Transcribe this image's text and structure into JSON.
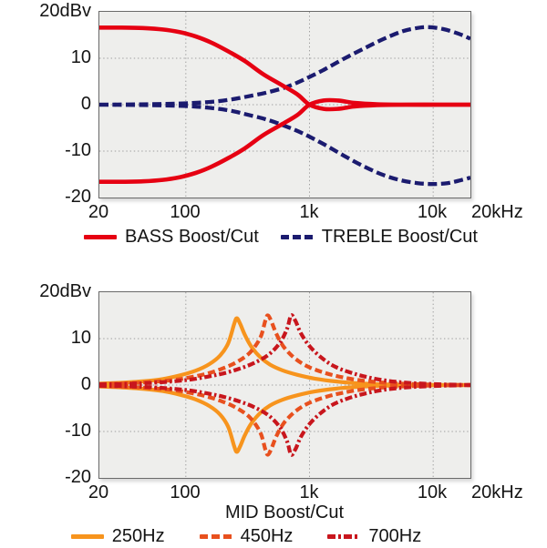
{
  "chart_data": [
    {
      "type": "line",
      "name": "bass-treble-eq-response",
      "x_scale": "log",
      "xlim": [
        20,
        20000
      ],
      "ylim": [
        -20,
        20
      ],
      "x_unit": "Hz",
      "y_unit": "dBv",
      "grid": {
        "x_values": [
          100,
          1000,
          10000
        ],
        "y_values": [
          10,
          0,
          -10
        ]
      },
      "yticks": [
        {
          "value": 20,
          "label": "20dBv"
        },
        {
          "value": 10,
          "label": "10"
        },
        {
          "value": 0,
          "label": "0"
        },
        {
          "value": -10,
          "label": "-10"
        },
        {
          "value": -20,
          "label": "-20"
        }
      ],
      "xticks": [
        {
          "value": 20,
          "label": "20"
        },
        {
          "value": 100,
          "label": "100"
        },
        {
          "value": 1000,
          "label": "1k"
        },
        {
          "value": 10000,
          "label": "10k"
        },
        {
          "value": 20000,
          "label": "20kHz"
        }
      ],
      "legend": [
        {
          "label": "BASS Boost/Cut",
          "color": "#e60012",
          "style": "solid"
        },
        {
          "label": "TREBLE Boost/Cut",
          "color": "#1b1b6f",
          "style": "dashed"
        }
      ],
      "series": [
        {
          "name": "treble-boost",
          "color": "#1b1b6f",
          "dash": "10 4.5",
          "width": 4.3,
          "points": [
            [
              20,
              0
            ],
            [
              50,
              0.1
            ],
            [
              100,
              0.3
            ],
            [
              160,
              0.6
            ],
            [
              230,
              1.1
            ],
            [
              320,
              1.8
            ],
            [
              450,
              2.6
            ],
            [
              650,
              3.8
            ],
            [
              900,
              5.4
            ],
            [
              1300,
              7.5
            ],
            [
              1900,
              9.9
            ],
            [
              2800,
              12.2
            ],
            [
              4000,
              14.2
            ],
            [
              5500,
              15.7
            ],
            [
              7000,
              16.4
            ],
            [
              9000,
              16.7
            ],
            [
              12000,
              16.3
            ],
            [
              16000,
              15.3
            ],
            [
              20000,
              14.2
            ]
          ]
        },
        {
          "name": "treble-cut",
          "color": "#1b1b6f",
          "dash": "10 4.5",
          "width": 4.3,
          "points": [
            [
              20,
              0
            ],
            [
              50,
              -0.1
            ],
            [
              100,
              -0.3
            ],
            [
              160,
              -0.7
            ],
            [
              230,
              -1.3
            ],
            [
              320,
              -2.2
            ],
            [
              450,
              -3.2
            ],
            [
              650,
              -4.7
            ],
            [
              900,
              -6.3
            ],
            [
              1300,
              -8.5
            ],
            [
              1900,
              -11.0
            ],
            [
              2800,
              -13.4
            ],
            [
              4000,
              -15.2
            ],
            [
              5500,
              -16.3
            ],
            [
              7500,
              -16.9
            ],
            [
              10000,
              -17.1
            ],
            [
              13000,
              -16.9
            ],
            [
              16000,
              -16.4
            ],
            [
              20000,
              -15.7
            ]
          ]
        },
        {
          "name": "bass-boost",
          "color": "#e60012",
          "dash": "",
          "width": 4.6,
          "points": [
            [
              20,
              16.6
            ],
            [
              30,
              16.6
            ],
            [
              45,
              16.5
            ],
            [
              65,
              16.2
            ],
            [
              90,
              15.6
            ],
            [
              120,
              14.7
            ],
            [
              160,
              13.4
            ],
            [
              220,
              11.5
            ],
            [
              300,
              9.4
            ],
            [
              420,
              6.6
            ],
            [
              600,
              4.2
            ],
            [
              800,
              2.2
            ],
            [
              1000,
              0
            ],
            [
              1300,
              -0.9
            ],
            [
              1700,
              -0.9
            ],
            [
              2300,
              -0.4
            ],
            [
              3500,
              -0.1
            ],
            [
              6000,
              0
            ],
            [
              12000,
              0
            ],
            [
              20000,
              0
            ]
          ]
        },
        {
          "name": "bass-cut",
          "color": "#e60012",
          "dash": "",
          "width": 4.6,
          "points": [
            [
              20,
              -16.6
            ],
            [
              30,
              -16.6
            ],
            [
              45,
              -16.5
            ],
            [
              65,
              -16.2
            ],
            [
              90,
              -15.6
            ],
            [
              120,
              -14.7
            ],
            [
              160,
              -13.4
            ],
            [
              220,
              -11.5
            ],
            [
              300,
              -9.4
            ],
            [
              420,
              -6.6
            ],
            [
              600,
              -4.2
            ],
            [
              800,
              -2.2
            ],
            [
              1000,
              0
            ],
            [
              1300,
              0.9
            ],
            [
              1700,
              0.9
            ],
            [
              2300,
              0.4
            ],
            [
              3500,
              0.1
            ],
            [
              6000,
              0
            ],
            [
              12000,
              0
            ],
            [
              20000,
              0
            ]
          ]
        }
      ]
    },
    {
      "type": "line",
      "name": "mid-eq-response",
      "title": "MID Boost/Cut",
      "x_scale": "log",
      "xlim": [
        20,
        20000
      ],
      "ylim": [
        -20,
        20
      ],
      "x_unit": "Hz",
      "y_unit": "dBv",
      "grid": {
        "x_values": [
          100,
          1000,
          10000
        ],
        "y_values": [
          10,
          0,
          -10
        ]
      },
      "yticks": [
        {
          "value": 20,
          "label": "20dBv"
        },
        {
          "value": 10,
          "label": "10"
        },
        {
          "value": 0,
          "label": "0"
        },
        {
          "value": -10,
          "label": "-10"
        },
        {
          "value": -20,
          "label": "-20"
        }
      ],
      "xticks": [
        {
          "value": 20,
          "label": "20"
        },
        {
          "value": 100,
          "label": "100"
        },
        {
          "value": 1000,
          "label": "1k"
        },
        {
          "value": 10000,
          "label": "10k"
        },
        {
          "value": 20000,
          "label": "20kHz"
        }
      ],
      "legend": [
        {
          "label": "250Hz",
          "color": "#f7941d",
          "style": "solid"
        },
        {
          "label": "450Hz",
          "color": "#e8501e",
          "style": "dashed"
        },
        {
          "label": "700Hz",
          "color": "#c8161d",
          "style": "dashdot"
        }
      ],
      "series": [
        {
          "name": "mid-250hz-boost",
          "color": "#f7941d",
          "dash": "",
          "width": 4.2,
          "points": [
            [
              20,
              0.3
            ],
            [
              30,
              0.5
            ],
            [
              45,
              0.8
            ],
            [
              65,
              1.3
            ],
            [
              90,
              2.1
            ],
            [
              120,
              3.1
            ],
            [
              155,
              4.5
            ],
            [
              190,
              6.4
            ],
            [
              220,
              9.0
            ],
            [
              245,
              13.0
            ],
            [
              258,
              14.4
            ],
            [
              275,
              13.2
            ],
            [
              300,
              10.8
            ],
            [
              340,
              8.2
            ],
            [
              400,
              6.0
            ],
            [
              480,
              4.4
            ],
            [
              600,
              3.2
            ],
            [
              800,
              2.2
            ],
            [
              1100,
              1.4
            ],
            [
              1600,
              0.8
            ],
            [
              2400,
              0.4
            ],
            [
              4000,
              0.15
            ],
            [
              8000,
              0.05
            ],
            [
              20000,
              0
            ]
          ]
        },
        {
          "name": "mid-250hz-cut",
          "color": "#f7941d",
          "dash": "",
          "width": 4.2,
          "points": [
            [
              20,
              -0.3
            ],
            [
              30,
              -0.5
            ],
            [
              45,
              -0.8
            ],
            [
              65,
              -1.3
            ],
            [
              90,
              -2.1
            ],
            [
              120,
              -3.1
            ],
            [
              155,
              -4.5
            ],
            [
              190,
              -6.4
            ],
            [
              220,
              -9.0
            ],
            [
              245,
              -13.0
            ],
            [
              258,
              -14.4
            ],
            [
              275,
              -13.2
            ],
            [
              300,
              -10.8
            ],
            [
              340,
              -8.2
            ],
            [
              400,
              -6.0
            ],
            [
              480,
              -4.4
            ],
            [
              600,
              -3.2
            ],
            [
              800,
              -2.2
            ],
            [
              1100,
              -1.4
            ],
            [
              1600,
              -0.8
            ],
            [
              2400,
              -0.4
            ],
            [
              4000,
              -0.15
            ],
            [
              8000,
              -0.05
            ],
            [
              20000,
              0
            ]
          ]
        },
        {
          "name": "mid-450hz-boost",
          "color": "#e8501e",
          "dash": "8 4",
          "width": 4.2,
          "points": [
            [
              20,
              0.2
            ],
            [
              35,
              0.4
            ],
            [
              55,
              0.7
            ],
            [
              80,
              1.1
            ],
            [
              110,
              1.7
            ],
            [
              150,
              2.5
            ],
            [
              200,
              3.6
            ],
            [
              260,
              5.0
            ],
            [
              330,
              7.0
            ],
            [
              400,
              10.2
            ],
            [
              440,
              13.9
            ],
            [
              460,
              15.0
            ],
            [
              490,
              13.8
            ],
            [
              540,
              11.0
            ],
            [
              620,
              8.2
            ],
            [
              750,
              5.9
            ],
            [
              950,
              4.1
            ],
            [
              1300,
              2.7
            ],
            [
              1900,
              1.6
            ],
            [
              3000,
              0.8
            ],
            [
              5000,
              0.35
            ],
            [
              10000,
              0.1
            ],
            [
              20000,
              0
            ]
          ]
        },
        {
          "name": "mid-450hz-cut",
          "color": "#e8501e",
          "dash": "8 4",
          "width": 4.2,
          "points": [
            [
              20,
              -0.2
            ],
            [
              35,
              -0.4
            ],
            [
              55,
              -0.7
            ],
            [
              80,
              -1.1
            ],
            [
              110,
              -1.7
            ],
            [
              150,
              -2.5
            ],
            [
              200,
              -3.6
            ],
            [
              260,
              -5.0
            ],
            [
              330,
              -7.0
            ],
            [
              400,
              -10.2
            ],
            [
              440,
              -13.9
            ],
            [
              460,
              -15.0
            ],
            [
              490,
              -13.8
            ],
            [
              540,
              -11.0
            ],
            [
              620,
              -8.2
            ],
            [
              750,
              -5.9
            ],
            [
              950,
              -4.1
            ],
            [
              1300,
              -2.7
            ],
            [
              1900,
              -1.6
            ],
            [
              3000,
              -0.8
            ],
            [
              5000,
              -0.35
            ],
            [
              10000,
              -0.1
            ],
            [
              20000,
              0
            ]
          ]
        },
        {
          "name": "mid-700hz-boost",
          "color": "#c8161d",
          "dash": "8 3 2.5 3",
          "width": 4.2,
          "points": [
            [
              20,
              0.15
            ],
            [
              35,
              0.3
            ],
            [
              55,
              0.5
            ],
            [
              80,
              0.8
            ],
            [
              110,
              1.2
            ],
            [
              150,
              1.8
            ],
            [
              200,
              2.5
            ],
            [
              270,
              3.5
            ],
            [
              360,
              4.8
            ],
            [
              470,
              6.6
            ],
            [
              580,
              9.2
            ],
            [
              660,
              12.2
            ],
            [
              710,
              15.0
            ],
            [
              770,
              13.8
            ],
            [
              850,
              11.2
            ],
            [
              1000,
              8.4
            ],
            [
              1250,
              5.9
            ],
            [
              1600,
              4.0
            ],
            [
              2200,
              2.6
            ],
            [
              3200,
              1.5
            ],
            [
              5000,
              0.7
            ],
            [
              9000,
              0.25
            ],
            [
              20000,
              0
            ]
          ]
        },
        {
          "name": "mid-700hz-cut",
          "color": "#c8161d",
          "dash": "8 3 2.5 3",
          "width": 4.2,
          "points": [
            [
              20,
              -0.15
            ],
            [
              35,
              -0.3
            ],
            [
              55,
              -0.5
            ],
            [
              80,
              -0.8
            ],
            [
              110,
              -1.2
            ],
            [
              150,
              -1.8
            ],
            [
              200,
              -2.5
            ],
            [
              270,
              -3.5
            ],
            [
              360,
              -4.8
            ],
            [
              470,
              -6.6
            ],
            [
              580,
              -9.2
            ],
            [
              660,
              -12.2
            ],
            [
              710,
              -15.0
            ],
            [
              770,
              -13.8
            ],
            [
              850,
              -11.2
            ],
            [
              1000,
              -8.4
            ],
            [
              1250,
              -5.9
            ],
            [
              1600,
              -4.0
            ],
            [
              2200,
              -2.6
            ],
            [
              3200,
              -1.5
            ],
            [
              5000,
              -0.7
            ],
            [
              9000,
              -0.25
            ],
            [
              20000,
              0
            ]
          ]
        }
      ]
    }
  ]
}
